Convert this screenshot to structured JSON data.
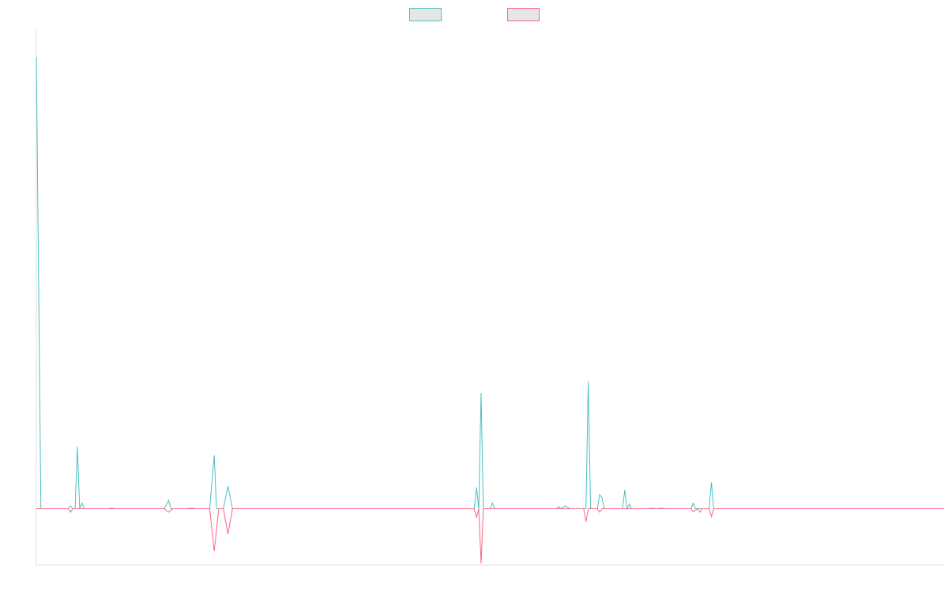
{
  "chart_data": {
    "type": "line",
    "title": "",
    "xlabel": "",
    "ylabel": "",
    "x_points": 200,
    "xlim": [
      0,
      199
    ],
    "ylim": [
      -10,
      85
    ],
    "grid": false,
    "legend": {
      "position": "top-center",
      "entries": [
        {
          "label": "",
          "color": "#4bc0c0",
          "fill": "#e6e6e6"
        },
        {
          "label": "",
          "color": "#ff6384",
          "fill": "#e6e6e6"
        }
      ]
    },
    "series": [
      {
        "color": "#4bc0c0",
        "points": [
          [
            0,
            80
          ],
          [
            1,
            0
          ],
          [
            7,
            0
          ],
          [
            7.5,
            0.5
          ],
          [
            8,
            0
          ],
          [
            8.5,
            0
          ],
          [
            9,
            11
          ],
          [
            9.5,
            0
          ],
          [
            10,
            1
          ],
          [
            10.5,
            0
          ],
          [
            16,
            0
          ],
          [
            16.5,
            0.15
          ],
          [
            17,
            0
          ],
          [
            28,
            0
          ],
          [
            29,
            1.5
          ],
          [
            29.5,
            0
          ],
          [
            33,
            0
          ],
          [
            34,
            0.1
          ],
          [
            35,
            0
          ],
          [
            38,
            0
          ],
          [
            39,
            9.5
          ],
          [
            39.5,
            0
          ],
          [
            41,
            0
          ],
          [
            42,
            4
          ],
          [
            43,
            0
          ],
          [
            96,
            0
          ],
          [
            96.5,
            3.8
          ],
          [
            97,
            0
          ],
          [
            97.5,
            20.5
          ],
          [
            98,
            0
          ],
          [
            99.5,
            0
          ],
          [
            100,
            1
          ],
          [
            100.5,
            0
          ],
          [
            114,
            0
          ],
          [
            114.5,
            0.4
          ],
          [
            115,
            0
          ],
          [
            116,
            0.5
          ],
          [
            117,
            0
          ],
          [
            120.5,
            0
          ],
          [
            121,
            22.5
          ],
          [
            121.5,
            0
          ],
          [
            123,
            0
          ],
          [
            123.5,
            2.5
          ],
          [
            124,
            2
          ],
          [
            124.5,
            0
          ],
          [
            128.5,
            0
          ],
          [
            129,
            3.3
          ],
          [
            129.5,
            0
          ],
          [
            130,
            0.8
          ],
          [
            130.5,
            0
          ],
          [
            134,
            0
          ],
          [
            135,
            0.1
          ],
          [
            136,
            0
          ],
          [
            137,
            0.1
          ],
          [
            138,
            0
          ],
          [
            143.5,
            0
          ],
          [
            144,
            1
          ],
          [
            144.5,
            0
          ],
          [
            147.5,
            0
          ],
          [
            148,
            4.7
          ],
          [
            148.5,
            0
          ],
          [
            199,
            0
          ]
        ]
      },
      {
        "color": "#ff6384",
        "points": [
          [
            0,
            0
          ],
          [
            7,
            0
          ],
          [
            7.5,
            -0.6
          ],
          [
            8,
            0
          ],
          [
            28,
            0
          ],
          [
            29,
            -0.6
          ],
          [
            30,
            0
          ],
          [
            38,
            0
          ],
          [
            39,
            -7.5
          ],
          [
            40,
            0
          ],
          [
            41,
            0
          ],
          [
            42,
            -4.5
          ],
          [
            43,
            0
          ],
          [
            96,
            0
          ],
          [
            96.5,
            -1.6
          ],
          [
            97,
            0
          ],
          [
            97.5,
            -9.7
          ],
          [
            98,
            0
          ],
          [
            120,
            0
          ],
          [
            120.5,
            -2.3
          ],
          [
            121,
            0
          ],
          [
            123,
            0
          ],
          [
            123.5,
            -0.6
          ],
          [
            124,
            0
          ],
          [
            143.5,
            0
          ],
          [
            144,
            -0.5
          ],
          [
            145,
            0
          ],
          [
            145.5,
            -0.6
          ],
          [
            146,
            0
          ],
          [
            147.5,
            0
          ],
          [
            148,
            -1.4
          ],
          [
            148.5,
            0
          ],
          [
            199,
            0
          ]
        ]
      }
    ]
  }
}
